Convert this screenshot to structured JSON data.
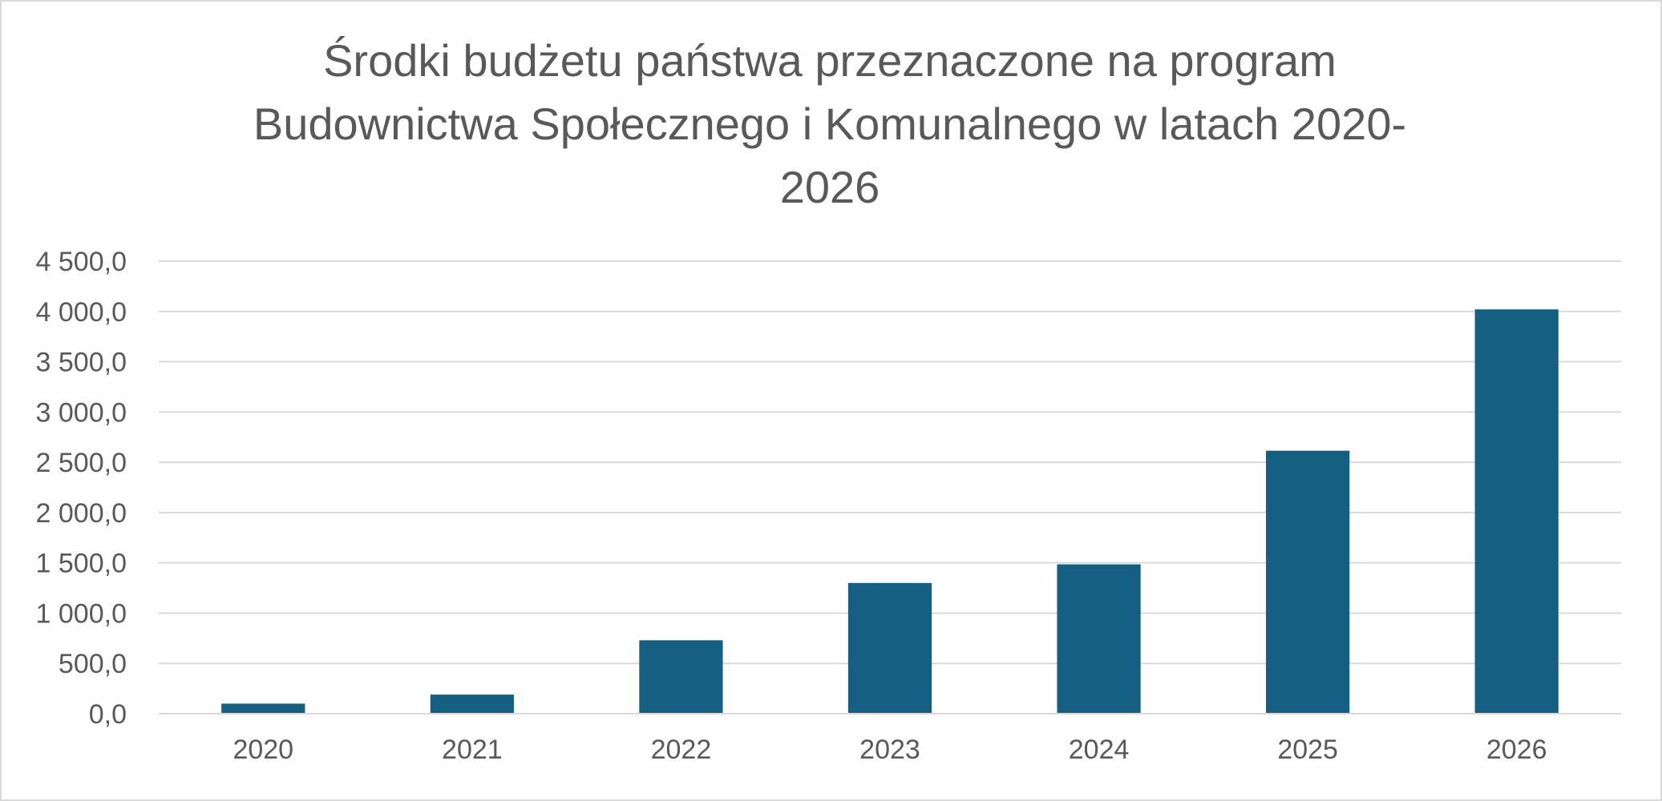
{
  "chart_data": {
    "type": "bar",
    "title": "Środki budżetu państwa przeznaczone na program\nBudownictwa Społecznego i Komunalnego w latach 2020-\n2026",
    "xlabel": "",
    "ylabel": "",
    "categories": [
      "2020",
      "2021",
      "2022",
      "2023",
      "2024",
      "2025",
      "2026"
    ],
    "values": [
      100,
      190,
      730,
      1300,
      1485,
      2615,
      4020
    ],
    "ylim": [
      0,
      4500
    ],
    "yticks": [
      0,
      500,
      1000,
      1500,
      2000,
      2500,
      3000,
      3500,
      4000,
      4500
    ],
    "ytick_labels": [
      "0,0",
      "500,0",
      "1 000,0",
      "1 500,0",
      "2 000,0",
      "2 500,0",
      "3 000,0",
      "3 500,0",
      "4 000,0",
      "4 500,0"
    ],
    "grid": true,
    "legend": "none",
    "colors": {
      "bar": "#156082",
      "grid": "#d9d9d9",
      "axis": "#d9d9d9",
      "text": "#595959"
    }
  }
}
